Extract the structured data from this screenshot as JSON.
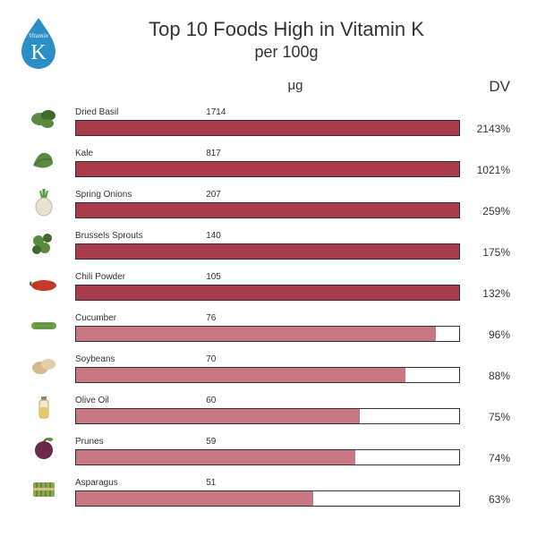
{
  "header": {
    "title": "Top 10 Foods High in Vitamin K",
    "subtitle": "per 100g",
    "badge_top": "Vitamin",
    "badge_letter": "K",
    "badge_color": "#2a8fc7"
  },
  "columns": {
    "unit": "μg",
    "dv": "DV"
  },
  "chart": {
    "type": "bar",
    "bar_color_dark": "#a93b4a",
    "bar_color_light": "#c87882",
    "bar_border_color": "#333333",
    "background": "#ffffff",
    "max_pct": 100,
    "items": [
      {
        "name": "Dried Basil",
        "ug": "1714",
        "dv": "2143%",
        "fill_pct": 100,
        "shade": "dark",
        "icon": "basil"
      },
      {
        "name": "Kale",
        "ug": "817",
        "dv": "1021%",
        "fill_pct": 100,
        "shade": "dark",
        "icon": "kale"
      },
      {
        "name": "Spring Onions",
        "ug": "207",
        "dv": "259%",
        "fill_pct": 100,
        "shade": "dark",
        "icon": "onion"
      },
      {
        "name": "Brussels Sprouts",
        "ug": "140",
        "dv": "175%",
        "fill_pct": 100,
        "shade": "dark",
        "icon": "sprouts"
      },
      {
        "name": "Chili Powder",
        "ug": "105",
        "dv": "132%",
        "fill_pct": 100,
        "shade": "dark",
        "icon": "chili"
      },
      {
        "name": "Cucumber",
        "ug": "76",
        "dv": "96%",
        "fill_pct": 94,
        "shade": "light",
        "icon": "cucumber"
      },
      {
        "name": "Soybeans",
        "ug": "70",
        "dv": "88%",
        "fill_pct": 86,
        "shade": "light",
        "icon": "soy"
      },
      {
        "name": "Olive Oil",
        "ug": "60",
        "dv": "75%",
        "fill_pct": 74,
        "shade": "light",
        "icon": "oil"
      },
      {
        "name": "Prunes",
        "ug": "59",
        "dv": "74%",
        "fill_pct": 73,
        "shade": "light",
        "icon": "prune"
      },
      {
        "name": "Asparagus",
        "ug": "51",
        "dv": "63%",
        "fill_pct": 62,
        "shade": "light",
        "icon": "asparagus"
      }
    ]
  },
  "icon_colors": {
    "leaf_green": "#5a8a3f",
    "leaf_dark": "#3f6b2a",
    "chili_red": "#c43a2a",
    "cucumber_green": "#6fa34a",
    "soy_tan": "#d4b98a",
    "oil_yellow": "#e8c95a",
    "oil_bottle": "#c9a050",
    "prune_purple": "#6b2a4a",
    "asparagus_green": "#8aa850",
    "onion_white": "#e8e2d0",
    "onion_green": "#5a9a3f"
  }
}
